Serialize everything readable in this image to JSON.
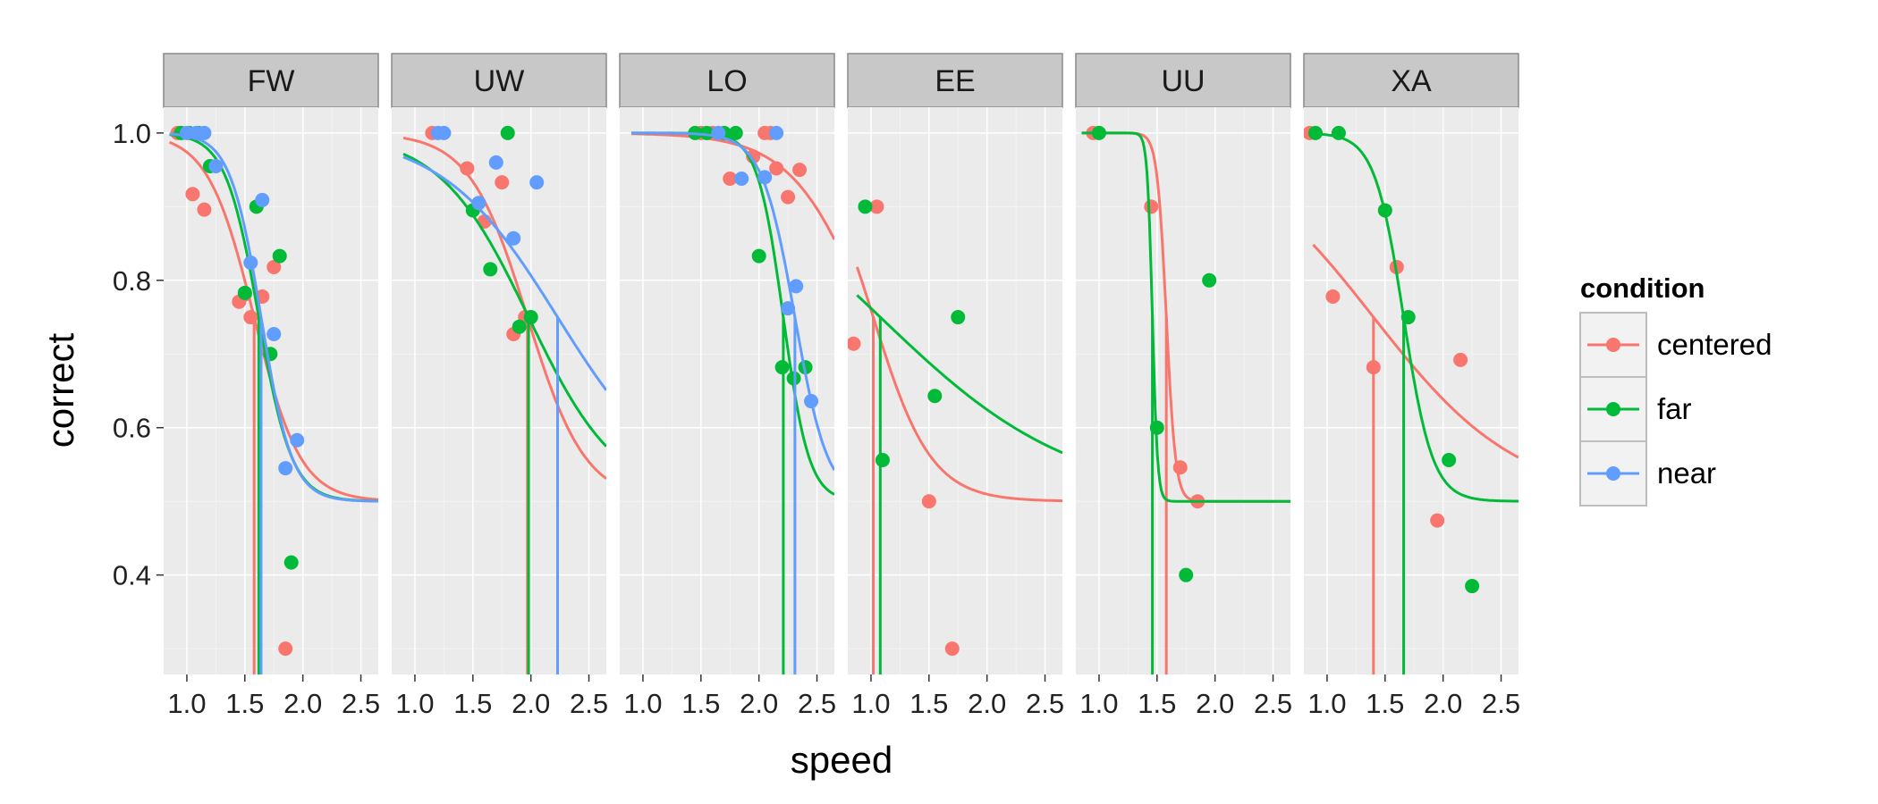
{
  "chart_data": {
    "type": "scatter",
    "xlabel": "speed",
    "ylabel": "correct",
    "xlim": [
      0.8,
      2.65
    ],
    "ylim": [
      0.265,
      1.035
    ],
    "xticks": [
      1.0,
      1.5,
      2.0,
      2.5
    ],
    "xtick_labels": [
      "1.0",
      "1.5",
      "2.0",
      "2.5"
    ],
    "yticks": [
      0.4,
      0.6,
      0.8,
      1.0
    ],
    "ytick_labels": [
      "0.4",
      "0.6",
      "0.8",
      "1.0"
    ],
    "grid": true,
    "legend": {
      "title": "condition",
      "placement": "right",
      "entries": [
        {
          "label": "centered",
          "color": "#F8766D"
        },
        {
          "label": "far",
          "color": "#00BA38"
        },
        {
          "label": "near",
          "color": "#619CFF"
        }
      ]
    },
    "colors": {
      "centered": "#F8766D",
      "far": "#00BA38",
      "near": "#619CFF"
    },
    "facets": [
      {
        "label": "FW",
        "series": [
          {
            "name": "centered",
            "points": [
              [
                0.92,
                1.0
              ],
              [
                1.05,
                0.917
              ],
              [
                1.15,
                0.896
              ],
              [
                1.45,
                0.771
              ],
              [
                1.5,
                0.781
              ],
              [
                1.55,
                0.75
              ],
              [
                1.65,
                0.778
              ],
              [
                1.75,
                0.818
              ],
              [
                1.85,
                0.3
              ]
            ],
            "curve": {
              "threshold": 1.58,
              "slope": 5.0,
              "xmin": 0.85,
              "xmax": 2.65
            },
            "threshold": 1.58
          },
          {
            "name": "far",
            "points": [
              [
                0.95,
                1.0
              ],
              [
                1.02,
                1.0
              ],
              [
                1.1,
                1.0
              ],
              [
                1.2,
                0.955
              ],
              [
                1.5,
                0.783
              ],
              [
                1.6,
                0.9
              ],
              [
                1.72,
                0.7
              ],
              [
                1.8,
                0.833
              ],
              [
                1.9,
                0.417
              ]
            ],
            "curve": {
              "threshold": 1.62,
              "slope": 7.0,
              "xmin": 0.85,
              "xmax": 2.65
            },
            "threshold": 1.62
          },
          {
            "name": "near",
            "points": [
              [
                1.0,
                1.0
              ],
              [
                1.08,
                1.0
              ],
              [
                1.15,
                1.0
              ],
              [
                1.25,
                0.955
              ],
              [
                1.55,
                0.824
              ],
              [
                1.65,
                0.909
              ],
              [
                1.75,
                0.727
              ],
              [
                1.85,
                0.545
              ],
              [
                1.95,
                0.583
              ]
            ],
            "curve": {
              "threshold": 1.64,
              "slope": 7.5,
              "xmin": 0.85,
              "xmax": 2.65
            },
            "threshold": 1.64
          }
        ]
      },
      {
        "label": "UW",
        "series": [
          {
            "name": "centered",
            "points": [
              [
                1.15,
                1.0
              ],
              [
                1.45,
                0.952
              ],
              [
                1.6,
                0.88
              ],
              [
                1.75,
                0.933
              ],
              [
                1.85,
                0.727
              ],
              [
                1.95,
                0.75
              ]
            ],
            "curve": {
              "threshold": 1.97,
              "slope": 4.0,
              "xmin": 0.9,
              "xmax": 2.65
            },
            "threshold": 1.97
          },
          {
            "name": "far",
            "points": [
              [
                1.5,
                0.895
              ],
              [
                1.65,
                0.815
              ],
              [
                1.8,
                1.0
              ],
              [
                1.9,
                0.737
              ],
              [
                2.0,
                0.75
              ]
            ],
            "curve": {
              "threshold": 1.98,
              "slope": 2.6,
              "xmin": 0.9,
              "xmax": 2.65
            },
            "threshold": 1.98
          },
          {
            "name": "near",
            "points": [
              [
                1.2,
                1.0
              ],
              [
                1.25,
                1.0
              ],
              [
                1.55,
                0.905
              ],
              [
                1.7,
                0.96
              ],
              [
                1.85,
                0.857
              ],
              [
                2.05,
                0.933
              ]
            ],
            "curve": {
              "threshold": 2.23,
              "slope": 2.0,
              "xmin": 0.9,
              "xmax": 2.65
            },
            "threshold": 2.23
          }
        ]
      },
      {
        "label": "LO",
        "series": [
          {
            "name": "centered",
            "points": [
              [
                1.5,
                1.0
              ],
              [
                1.6,
                1.0
              ],
              [
                1.75,
                0.938
              ],
              [
                1.95,
                0.968
              ],
              [
                2.05,
                1.0
              ],
              [
                2.1,
                1.0
              ],
              [
                2.15,
                0.952
              ],
              [
                2.25,
                0.913
              ],
              [
                2.35,
                0.95
              ]
            ],
            "curve": {
              "threshold": 2.95,
              "slope": 3.0,
              "xmin": 0.9,
              "xmax": 2.65
            },
            "threshold": null
          },
          {
            "name": "far",
            "points": [
              [
                1.45,
                1.0
              ],
              [
                1.55,
                1.0
              ],
              [
                1.7,
                1.0
              ],
              [
                1.8,
                1.0
              ],
              [
                2.0,
                0.833
              ],
              [
                2.2,
                0.682
              ],
              [
                2.3,
                0.667
              ],
              [
                2.4,
                0.682
              ]
            ],
            "curve": {
              "threshold": 2.21,
              "slope": 9.0,
              "xmin": 0.9,
              "xmax": 2.65
            },
            "threshold": 2.21
          },
          {
            "name": "near",
            "points": [
              [
                1.65,
                1.0
              ],
              [
                1.85,
                0.938
              ],
              [
                2.05,
                0.94
              ],
              [
                2.15,
                1.0
              ],
              [
                2.25,
                0.762
              ],
              [
                2.32,
                0.792
              ],
              [
                2.45,
                0.636
              ]
            ],
            "curve": {
              "threshold": 2.31,
              "slope": 7.0,
              "xmin": 0.9,
              "xmax": 2.65
            },
            "threshold": 2.31
          }
        ]
      },
      {
        "label": "EE",
        "series": [
          {
            "name": "centered",
            "points": [
              [
                0.85,
                0.714
              ],
              [
                1.05,
                0.9
              ],
              [
                1.5,
                0.5
              ],
              [
                1.7,
                0.3
              ]
            ],
            "curve": {
              "threshold": 1.02,
              "slope": 4.0,
              "xmin": 0.88,
              "xmax": 2.65
            },
            "threshold": 1.02
          },
          {
            "name": "far",
            "points": [
              [
                0.95,
                0.9
              ],
              [
                1.1,
                0.556
              ],
              [
                1.55,
                0.643
              ],
              [
                1.75,
                0.75
              ]
            ],
            "curve": {
              "threshold": 1.08,
              "slope": 1.2,
              "xmin": 0.88,
              "xmax": 2.65
            },
            "threshold": 1.08
          }
        ]
      },
      {
        "label": "UU",
        "series": [
          {
            "name": "centered",
            "points": [
              [
                0.95,
                1.0
              ],
              [
                1.45,
                0.9
              ],
              [
                1.7,
                0.546
              ],
              [
                1.85,
                0.5
              ]
            ],
            "curve": {
              "threshold": 1.58,
              "slope": 25.0,
              "xmin": 0.85,
              "xmax": 2.65
            },
            "threshold": 1.58
          },
          {
            "name": "far",
            "points": [
              [
                1.0,
                1.0
              ],
              [
                1.5,
                0.6
              ],
              [
                1.75,
                0.4
              ],
              [
                1.95,
                0.8
              ]
            ],
            "curve": {
              "threshold": 1.46,
              "slope": 45.0,
              "xmin": 0.85,
              "xmax": 2.65
            },
            "threshold": 1.46
          }
        ]
      },
      {
        "label": "XA",
        "series": [
          {
            "name": "centered",
            "points": [
              [
                0.85,
                1.0
              ],
              [
                1.05,
                0.778
              ],
              [
                1.4,
                0.682
              ],
              [
                1.6,
                0.818
              ],
              [
                1.95,
                0.474
              ],
              [
                2.15,
                0.692
              ]
            ],
            "curve": {
              "threshold": 1.4,
              "slope": 1.6,
              "xmin": 0.88,
              "xmax": 2.65
            },
            "threshold": 1.4
          },
          {
            "name": "far",
            "points": [
              [
                0.9,
                1.0
              ],
              [
                1.1,
                1.0
              ],
              [
                1.5,
                0.895
              ],
              [
                1.7,
                0.75
              ],
              [
                2.05,
                0.556
              ],
              [
                2.25,
                0.385
              ]
            ],
            "curve": {
              "threshold": 1.66,
              "slope": 8.0,
              "xmin": 0.88,
              "xmax": 2.65
            },
            "threshold": 1.66
          }
        ]
      }
    ]
  }
}
